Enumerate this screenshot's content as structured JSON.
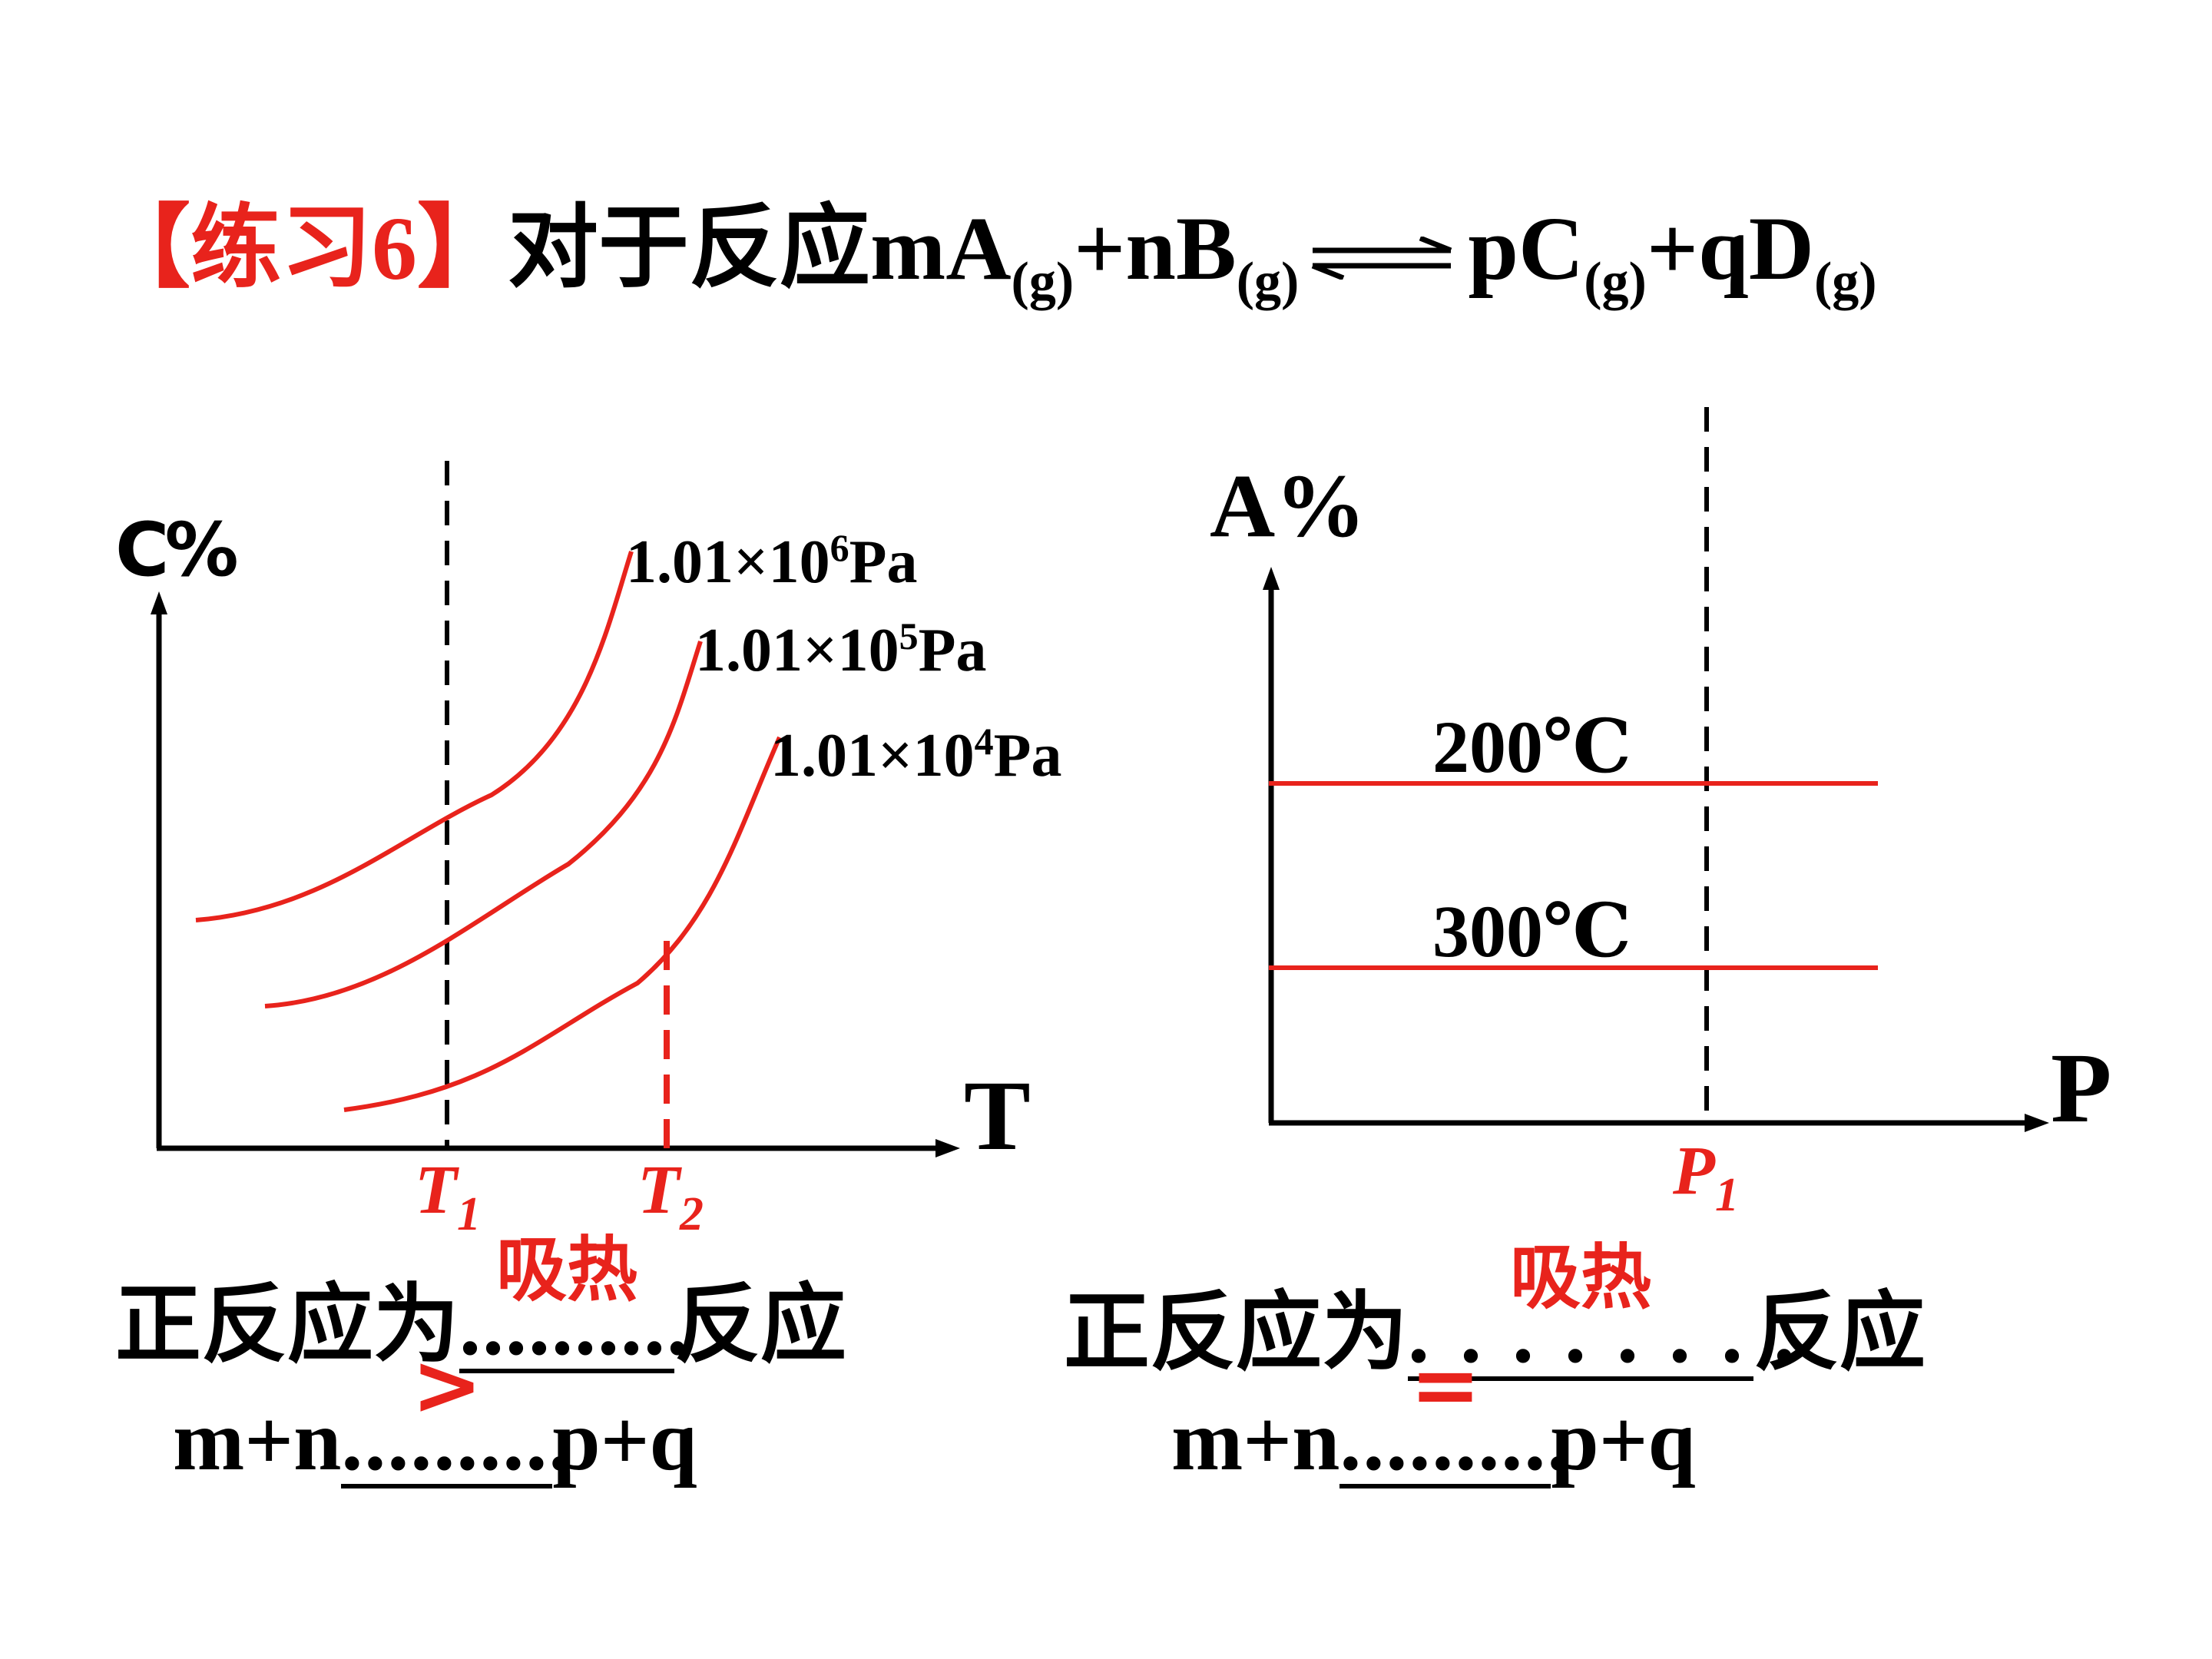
{
  "title": {
    "prefix": "【练习6】",
    "text": "对于反应",
    "reactant1": "mA",
    "reactant2": "+nB",
    "product1": "pC",
    "product2": "+qD",
    "state": "(g)"
  },
  "left_chart": {
    "y_label": "C%",
    "x_label": "T",
    "ticks": [
      {
        "base": "T",
        "sub": "1"
      },
      {
        "base": "T",
        "sub": "2"
      }
    ],
    "series": [
      {
        "mantissa": "1.01×10",
        "exp": "6",
        "unit": "Pa"
      },
      {
        "mantissa": "1.01×10",
        "exp": "5",
        "unit": "Pa"
      },
      {
        "mantissa": "1.01×10",
        "exp": "4",
        "unit": "Pa"
      }
    ],
    "question": {
      "prefix": "正反应为",
      "dots": "..........",
      "answer": "吸热",
      "suffix": "反应"
    },
    "relation": {
      "lhs": "m+n",
      "dots": "..........",
      "answer": ">",
      "rhs": "p+q"
    }
  },
  "right_chart": {
    "y_label": "A%",
    "x_label": "P",
    "tick": {
      "base": "P",
      "sub": "1"
    },
    "series": [
      {
        "name": "200℃"
      },
      {
        "name": "300℃"
      }
    ],
    "question": {
      "prefix": "正反应为",
      "dots": ". . . . . . . .",
      "answer": "吸热",
      "suffix": "反应"
    },
    "relation": {
      "lhs": "m+n",
      "dots": "..........",
      "answer": "=",
      "rhs": "p+q"
    }
  },
  "colors": {
    "accent": "#e8231c",
    "text": "#000000"
  }
}
